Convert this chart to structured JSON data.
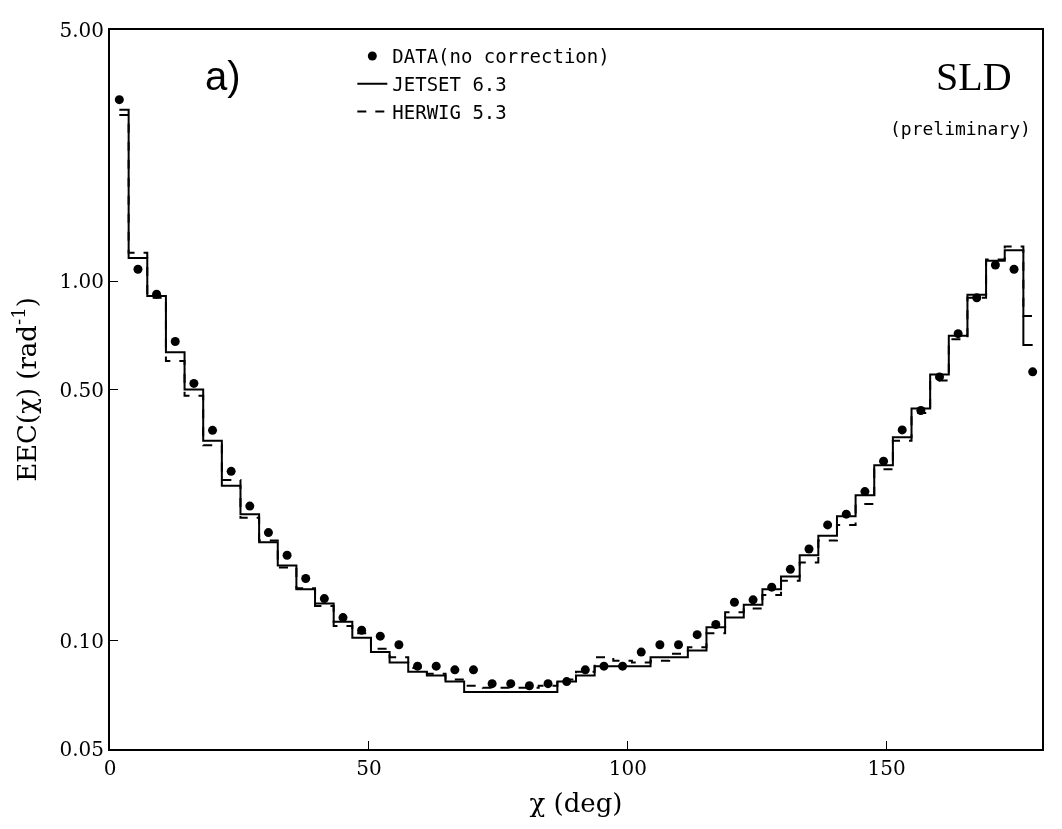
{
  "chart_data": {
    "type": "step",
    "xlabel": "χ (deg)",
    "ylabel": "EEC(χ) (rad$^{-1}$)",
    "x": [
      1.8,
      5.4,
      9,
      12.6,
      16.2,
      19.8,
      23.4,
      27,
      30.6,
      34.2,
      37.8,
      41.4,
      45,
      48.6,
      52.2,
      55.8,
      59.4,
      63,
      66.6,
      70.2,
      73.8,
      77.4,
      81,
      84.6,
      88.2,
      91.8,
      95.4,
      99,
      102.6,
      106.2,
      109.8,
      113.4,
      117,
      120.6,
      124.2,
      127.8,
      131.4,
      135,
      138.6,
      142.2,
      145.8,
      149.4,
      153,
      156.6,
      160.2,
      163.8,
      167.4,
      171,
      174.6,
      178.2
    ],
    "series": [
      {
        "name": "DATA(no correction)",
        "type": "scatter",
        "marker": "circle",
        "color": "#000000",
        "values": [
          3.2,
          1.08,
          0.92,
          0.68,
          0.52,
          0.385,
          0.296,
          0.237,
          0.2,
          0.173,
          0.149,
          0.131,
          0.116,
          0.107,
          0.103,
          0.0975,
          0.085,
          0.085,
          0.083,
          0.083,
          0.076,
          0.076,
          0.075,
          0.076,
          0.077,
          0.083,
          0.085,
          0.085,
          0.093,
          0.0975,
          0.0975,
          0.104,
          0.111,
          0.128,
          0.13,
          0.141,
          0.158,
          0.18,
          0.21,
          0.225,
          0.26,
          0.316,
          0.386,
          0.437,
          0.542,
          0.715,
          0.9,
          1.11,
          1.08,
          0.56
        ]
      },
      {
        "name": "JETSET 6.3",
        "line_style": "solid",
        "color": "#000000",
        "values": [
          3.0,
          1.16,
          0.91,
          0.635,
          0.5,
          0.36,
          0.27,
          0.225,
          0.188,
          0.162,
          0.139,
          0.127,
          0.113,
          0.102,
          0.093,
          0.087,
          0.082,
          0.08,
          0.077,
          0.072,
          0.072,
          0.072,
          0.072,
          0.072,
          0.077,
          0.08,
          0.085,
          0.085,
          0.085,
          0.09,
          0.09,
          0.094,
          0.109,
          0.116,
          0.126,
          0.139,
          0.151,
          0.173,
          0.196,
          0.222,
          0.254,
          0.308,
          0.368,
          0.443,
          0.55,
          0.705,
          0.918,
          1.14,
          1.22,
          0.665
        ]
      },
      {
        "name": "HERWIG 5.3",
        "line_style": "dashed",
        "color": "#000000",
        "values": [
          2.9,
          1.2,
          0.9,
          0.6,
          0.48,
          0.35,
          0.28,
          0.22,
          0.19,
          0.16,
          0.14,
          0.125,
          0.11,
          0.105,
          0.095,
          0.09,
          0.084,
          0.081,
          0.078,
          0.075,
          0.074,
          0.074,
          0.074,
          0.075,
          0.078,
          0.082,
          0.09,
          0.088,
          0.087,
          0.088,
          0.092,
          0.096,
          0.105,
          0.12,
          0.123,
          0.134,
          0.147,
          0.165,
          0.19,
          0.21,
          0.24,
          0.3,
          0.36,
          0.43,
          0.53,
          0.69,
          0.9,
          1.15,
          1.25,
          0.8
        ]
      }
    ],
    "xlim": [
      0,
      180
    ],
    "xticks": [
      0,
      50,
      100,
      150
    ],
    "log": true,
    "ylim": [
      0.05,
      5
    ],
    "yticks": [
      {
        "value": 0.05,
        "label": "0.05"
      },
      {
        "value": 0.1,
        "label": "0.10"
      },
      {
        "value": 0.5,
        "label": "0.50"
      },
      {
        "value": 1,
        "label": "1.00"
      },
      {
        "value": 5,
        "label": "5.00"
      }
    ],
    "legend": "top",
    "annotations": [
      "a)",
      "SLD",
      "(preliminary)"
    ]
  }
}
